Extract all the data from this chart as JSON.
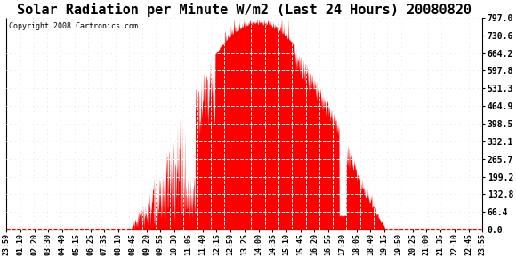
{
  "title": "Solar Radiation per Minute W/m2 (Last 24 Hours) 20080820",
  "copyright_text": "Copyright 2008 Cartronics.com",
  "fill_color": "#FF0000",
  "background_color": "#FFFFFF",
  "grid_color": "#C8C8C8",
  "dashed_line_color": "#FF0000",
  "ytick_labels": [
    0.0,
    66.4,
    132.8,
    199.2,
    265.7,
    332.1,
    398.5,
    464.9,
    531.3,
    597.8,
    664.2,
    730.6,
    797.0
  ],
  "ymax": 797.0,
  "ymin": 0.0,
  "x_tick_labels": [
    "23:59",
    "01:10",
    "02:20",
    "03:30",
    "04:40",
    "05:15",
    "06:25",
    "07:35",
    "08:10",
    "08:45",
    "09:20",
    "09:55",
    "10:30",
    "11:05",
    "11:40",
    "12:15",
    "12:50",
    "13:25",
    "14:00",
    "14:35",
    "15:10",
    "15:45",
    "16:20",
    "16:55",
    "17:30",
    "18:05",
    "18:40",
    "19:15",
    "19:50",
    "20:25",
    "21:00",
    "21:35",
    "22:10",
    "22:45",
    "23:55"
  ],
  "title_fontsize": 11,
  "copyright_fontsize": 6,
  "tick_fontsize": 6,
  "ytick_fontsize": 7
}
